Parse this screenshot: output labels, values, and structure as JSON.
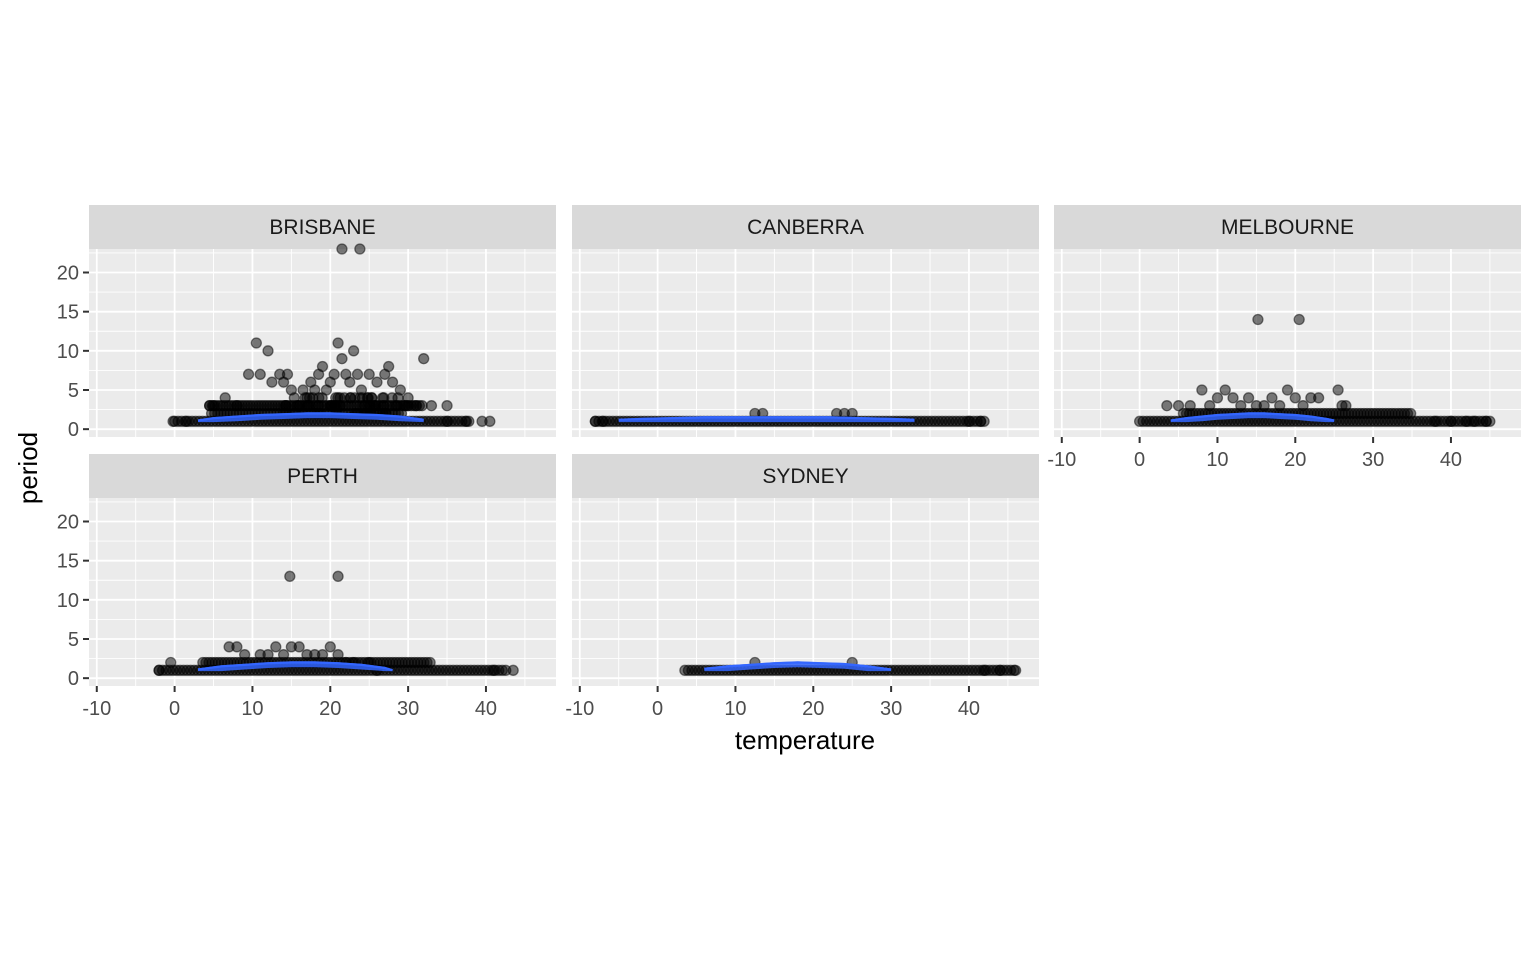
{
  "chart_data": {
    "type": "scatter",
    "title": "",
    "xlabel": "temperature",
    "ylabel": "period",
    "xlim": [
      -11,
      49
    ],
    "ylim": [
      -1,
      23
    ],
    "x_ticks": [
      -10,
      0,
      10,
      20,
      30,
      40
    ],
    "y_ticks": [
      0,
      5,
      10,
      15,
      20
    ],
    "grid": true,
    "layout": "facet_wrap 2 rows x 3 columns",
    "facets": [
      {
        "name": "BRISBANE",
        "x_range": [
          0,
          38
        ],
        "points": [
          [
            -0.2,
            1
          ],
          [
            1.5,
            1
          ],
          [
            39.5,
            1
          ],
          [
            40.5,
            1
          ],
          [
            35,
            1
          ],
          [
            37.5,
            1
          ],
          [
            4.5,
            3
          ],
          [
            5,
            3
          ],
          [
            6.5,
            4
          ],
          [
            8,
            3
          ],
          [
            9.5,
            7
          ],
          [
            10.5,
            11
          ],
          [
            11,
            7
          ],
          [
            12,
            10
          ],
          [
            12.5,
            6
          ],
          [
            13.5,
            7
          ],
          [
            14,
            6
          ],
          [
            14.5,
            7
          ],
          [
            15,
            5
          ],
          [
            16,
            3
          ],
          [
            16.5,
            5
          ],
          [
            17,
            4
          ],
          [
            17.5,
            6
          ],
          [
            18,
            5
          ],
          [
            18.5,
            7
          ],
          [
            19,
            8
          ],
          [
            19.5,
            5
          ],
          [
            20,
            6
          ],
          [
            20.5,
            7
          ],
          [
            21,
            11
          ],
          [
            21.5,
            9
          ],
          [
            22,
            7
          ],
          [
            22.5,
            6
          ],
          [
            23,
            10
          ],
          [
            23.5,
            7
          ],
          [
            24,
            5
          ],
          [
            25,
            7
          ],
          [
            26,
            6
          ],
          [
            27,
            7
          ],
          [
            27.5,
            8
          ],
          [
            28,
            6
          ],
          [
            29,
            5
          ],
          [
            30,
            4
          ],
          [
            31,
            3
          ],
          [
            32,
            9
          ],
          [
            33,
            3
          ],
          [
            35,
            3
          ],
          [
            21.5,
            23
          ],
          [
            23.8,
            23
          ]
        ]
      },
      {
        "name": "CANBERRA",
        "x_range": [
          -8,
          42
        ],
        "points": [
          [
            12.5,
            2
          ],
          [
            13.5,
            2
          ],
          [
            23,
            2
          ],
          [
            24,
            2
          ],
          [
            25,
            2
          ],
          [
            -8,
            1
          ],
          [
            -7,
            1
          ],
          [
            41.5,
            1
          ],
          [
            40,
            1
          ]
        ]
      },
      {
        "name": "MELBOURNE",
        "x_range": [
          0,
          45
        ],
        "points": [
          [
            3.5,
            3
          ],
          [
            5,
            3
          ],
          [
            6.5,
            3
          ],
          [
            8,
            5
          ],
          [
            9,
            3
          ],
          [
            10,
            4
          ],
          [
            11,
            5
          ],
          [
            12,
            4
          ],
          [
            13,
            3
          ],
          [
            14,
            4
          ],
          [
            15,
            3
          ],
          [
            16,
            3
          ],
          [
            17,
            4
          ],
          [
            18,
            3
          ],
          [
            19,
            5
          ],
          [
            20,
            4
          ],
          [
            21,
            3
          ],
          [
            22,
            4
          ],
          [
            23,
            4
          ],
          [
            25.5,
            5
          ],
          [
            26,
            3
          ],
          [
            26.5,
            3
          ],
          [
            15.2,
            14
          ],
          [
            20.5,
            14
          ],
          [
            38,
            1
          ],
          [
            40,
            1
          ],
          [
            42,
            1
          ],
          [
            43,
            1
          ],
          [
            44.5,
            1
          ],
          [
            45,
            1
          ]
        ]
      },
      {
        "name": "PERTH",
        "x_range": [
          -2,
          43
        ],
        "points": [
          [
            -2,
            1
          ],
          [
            -0.5,
            2
          ],
          [
            7,
            4
          ],
          [
            8,
            4
          ],
          [
            9,
            3
          ],
          [
            11,
            3
          ],
          [
            12,
            3
          ],
          [
            13,
            4
          ],
          [
            14,
            3
          ],
          [
            15,
            4
          ],
          [
            16,
            4
          ],
          [
            17,
            3
          ],
          [
            18,
            3
          ],
          [
            19,
            3
          ],
          [
            20,
            4
          ],
          [
            21,
            3
          ],
          [
            22,
            2
          ],
          [
            23,
            2
          ],
          [
            25,
            2
          ],
          [
            26,
            1
          ],
          [
            14.8,
            13
          ],
          [
            21,
            13
          ],
          [
            41,
            1
          ],
          [
            43.5,
            1
          ]
        ]
      },
      {
        "name": "SYDNEY",
        "x_range": [
          3.5,
          46
        ],
        "points": [
          [
            12.5,
            2
          ],
          [
            25,
            2
          ],
          [
            42,
            1
          ],
          [
            44,
            1
          ],
          [
            46,
            1
          ]
        ]
      }
    ],
    "smooth_series": [
      {
        "facet": "BRISBANE",
        "x": [
          3,
          5,
          8,
          11,
          14,
          17,
          20,
          23,
          26,
          29,
          32
        ],
        "y": [
          1.1,
          1.4,
          1.6,
          1.8,
          1.9,
          2.0,
          2.0,
          1.9,
          1.8,
          1.6,
          1.2
        ]
      },
      {
        "facet": "CANBERRA",
        "x": [
          -5,
          -2,
          2,
          6,
          10,
          14,
          18,
          22,
          26,
          30,
          33
        ],
        "y": [
          1.2,
          1.3,
          1.4,
          1.5,
          1.5,
          1.5,
          1.5,
          1.5,
          1.4,
          1.3,
          1.2
        ]
      },
      {
        "facet": "MELBOURNE",
        "x": [
          4,
          6,
          8,
          10,
          12,
          14,
          16,
          18,
          20,
          22,
          24,
          25
        ],
        "y": [
          1.1,
          1.4,
          1.6,
          1.8,
          1.9,
          2.0,
          2.0,
          1.9,
          1.8,
          1.6,
          1.3,
          1.1
        ]
      },
      {
        "facet": "PERTH",
        "x": [
          3,
          6,
          9,
          12,
          15,
          18,
          21,
          24,
          27,
          28
        ],
        "y": [
          1.1,
          1.5,
          1.7,
          1.9,
          2.0,
          2.0,
          1.9,
          1.7,
          1.3,
          1.0
        ]
      },
      {
        "facet": "SYDNEY",
        "x": [
          6,
          9,
          12,
          15,
          18,
          21,
          24,
          27,
          30
        ],
        "y": [
          1.2,
          1.5,
          1.7,
          1.9,
          2.0,
          1.9,
          1.8,
          1.5,
          1.1
        ]
      }
    ]
  }
}
